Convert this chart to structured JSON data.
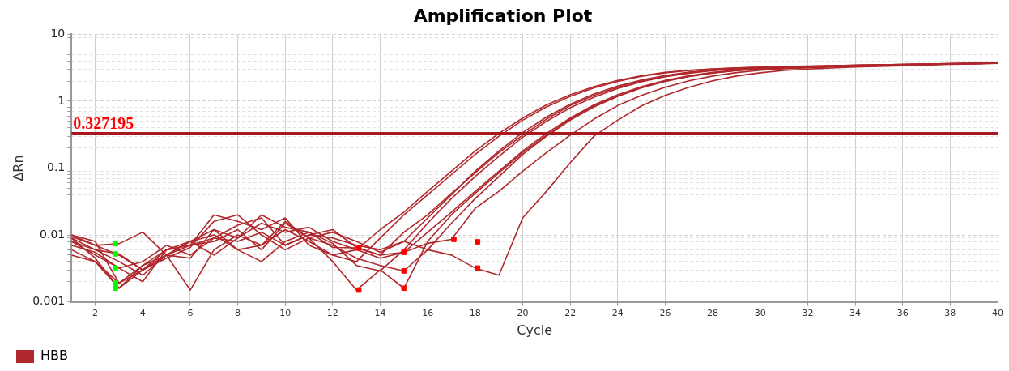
{
  "chart_data": {
    "type": "line",
    "title": "Amplification Plot",
    "xlabel": "Cycle",
    "ylabel": "ΔRn",
    "log": "y",
    "grid": true,
    "legend": "bottom left",
    "marker": "none",
    "line_style": "solid",
    "x": [
      1,
      2,
      3,
      4,
      5,
      6,
      7,
      8,
      9,
      10,
      11,
      12,
      13,
      14,
      15,
      16,
      17,
      18,
      19,
      20,
      21,
      22,
      23,
      24,
      25,
      26,
      27,
      28,
      29,
      30,
      31,
      32,
      33,
      34,
      35,
      36,
      37,
      38,
      39,
      40
    ],
    "xlim": [
      1,
      40
    ],
    "xticks": [
      2,
      4,
      6,
      8,
      10,
      12,
      14,
      16,
      18,
      20,
      22,
      24,
      26,
      28,
      30,
      32,
      34,
      36,
      38,
      40
    ],
    "ylim": [
      0.001,
      10
    ],
    "yticks": [
      0.001,
      {
        "value": 0.002,
        "label": null
      },
      {
        "value": 0.003,
        "label": null
      },
      {
        "value": 0.004,
        "label": null
      },
      {
        "value": 0.005,
        "label": null
      },
      {
        "value": 0.006,
        "label": null
      },
      {
        "value": 0.007,
        "label": null
      },
      {
        "value": 0.008,
        "label": null
      },
      {
        "value": 0.009,
        "label": null
      },
      0.01,
      {
        "value": 0.02,
        "label": null
      },
      {
        "value": 0.03,
        "label": null
      },
      {
        "value": 0.04,
        "label": null
      },
      {
        "value": 0.05,
        "label": null
      },
      {
        "value": 0.06,
        "label": null
      },
      {
        "value": 0.07,
        "label": null
      },
      {
        "value": 0.08,
        "label": null
      },
      {
        "value": 0.09,
        "label": null
      },
      0.1,
      {
        "value": 0.2,
        "label": null
      },
      {
        "value": 0.3,
        "label": null
      },
      {
        "value": 0.4,
        "label": null
      },
      {
        "value": 0.5,
        "label": null
      },
      {
        "value": 0.6,
        "label": null
      },
      {
        "value": 0.7,
        "label": null
      },
      {
        "value": 0.8,
        "label": null
      },
      {
        "value": 0.9,
        "label": null
      },
      1,
      {
        "value": 2,
        "label": null
      },
      {
        "value": 3,
        "label": null
      },
      {
        "value": 4,
        "label": null
      },
      {
        "value": 5,
        "label": null
      },
      {
        "value": 6,
        "label": null
      },
      {
        "value": 7,
        "label": null
      },
      {
        "value": 8,
        "label": null
      },
      {
        "value": 9,
        "label": null
      },
      10
    ],
    "ref_lines": [
      {
        "axis": "y",
        "value": 0.327195,
        "label": "0.327195",
        "color": "#a8181e"
      }
    ],
    "series": [
      {
        "name": "HBB",
        "color": "#b0272c",
        "values": [
          0.009,
          0.006,
          0.004,
          0.0025,
          0.005,
          0.008,
          0.012,
          0.009,
          0.015,
          0.011,
          0.013,
          0.008,
          0.006,
          0.012,
          0.022,
          0.045,
          0.09,
          0.18,
          0.33,
          0.56,
          0.88,
          1.25,
          1.65,
          2.05,
          2.4,
          2.7,
          2.9,
          3.05,
          3.15,
          3.25,
          3.3,
          3.35,
          3.4,
          3.45,
          3.5,
          3.55,
          3.6,
          3.65,
          3.7,
          3.72
        ]
      },
      {
        "color": "#b0272c",
        "values": [
          0.01,
          0.007,
          0.005,
          0.003,
          0.006,
          0.007,
          0.02,
          0.016,
          0.012,
          0.018,
          0.007,
          0.005,
          0.004,
          0.009,
          0.02,
          0.04,
          0.08,
          0.16,
          0.3,
          0.52,
          0.82,
          1.18,
          1.58,
          1.98,
          2.35,
          2.65,
          2.88,
          3.02,
          3.12,
          3.22,
          3.28,
          3.34,
          3.4,
          3.45,
          3.5,
          3.55,
          3.6,
          3.64,
          3.68,
          3.7
        ]
      },
      {
        "color": "#b0272c",
        "values": [
          0.008,
          0.005,
          0.0032,
          0.004,
          0.007,
          0.005,
          0.009,
          0.014,
          0.018,
          0.007,
          0.01,
          0.012,
          0.0065,
          0.005,
          0.011,
          0.02,
          0.042,
          0.085,
          0.17,
          0.31,
          0.54,
          0.86,
          1.22,
          1.62,
          2.02,
          2.38,
          2.68,
          2.9,
          3.05,
          3.15,
          3.25,
          3.3,
          3.36,
          3.42,
          3.48,
          3.53,
          3.58,
          3.63,
          3.68,
          3.72
        ]
      },
      {
        "color": "#b0272c",
        "values": [
          0.01,
          0.008,
          0.0019,
          0.003,
          0.005,
          0.0015,
          0.006,
          0.01,
          0.007,
          0.016,
          0.009,
          0.011,
          0.008,
          0.0055,
          0.008,
          0.018,
          0.04,
          0.09,
          0.18,
          0.34,
          0.58,
          0.9,
          1.28,
          1.68,
          2.08,
          2.42,
          2.72,
          2.92,
          3.07,
          3.17,
          3.26,
          3.32,
          3.38,
          3.44,
          3.5,
          3.55,
          3.6,
          3.65,
          3.7,
          3.73
        ]
      },
      {
        "color": "#b0272c",
        "values": [
          0.009,
          0.0045,
          0.0016,
          0.0035,
          0.006,
          0.008,
          0.005,
          0.009,
          0.02,
          0.013,
          0.011,
          0.0075,
          0.0035,
          0.0029,
          0.006,
          0.015,
          0.035,
          0.075,
          0.15,
          0.29,
          0.5,
          0.8,
          1.15,
          1.55,
          1.95,
          2.32,
          2.62,
          2.86,
          3.02,
          3.13,
          3.22,
          3.3,
          3.36,
          3.42,
          3.47,
          3.52,
          3.57,
          3.62,
          3.66,
          3.7
        ]
      },
      {
        "color": "#b0272c",
        "values": [
          0.0095,
          0.007,
          0.0074,
          0.011,
          0.005,
          0.0045,
          0.012,
          0.006,
          0.004,
          0.008,
          0.011,
          0.0065,
          0.0064,
          0.005,
          0.0055,
          0.011,
          0.022,
          0.045,
          0.09,
          0.18,
          0.33,
          0.56,
          0.88,
          1.25,
          1.65,
          2.05,
          2.4,
          2.7,
          2.9,
          3.05,
          3.15,
          3.25,
          3.32,
          3.38,
          3.44,
          3.5,
          3.55,
          3.6,
          3.66,
          3.7
        ]
      },
      {
        "color": "#b0272c",
        "values": [
          0.008,
          0.006,
          0.0052,
          0.003,
          0.0045,
          0.0065,
          0.016,
          0.02,
          0.01,
          0.006,
          0.009,
          0.004,
          0.0015,
          0.003,
          0.0016,
          0.008,
          0.02,
          0.042,
          0.085,
          0.17,
          0.31,
          0.54,
          0.85,
          1.2,
          1.6,
          2.0,
          2.36,
          2.66,
          2.88,
          3.03,
          3.14,
          3.23,
          3.3,
          3.37,
          3.43,
          3.49,
          3.54,
          3.6,
          3.65,
          3.7
        ]
      },
      {
        "color": "#b0272c",
        "values": [
          0.007,
          0.0055,
          0.0032,
          0.002,
          0.006,
          0.007,
          0.008,
          0.012,
          0.006,
          0.015,
          0.009,
          0.007,
          0.0045,
          0.0035,
          0.0029,
          0.006,
          0.015,
          0.035,
          0.075,
          0.16,
          0.3,
          0.52,
          0.82,
          1.18,
          1.58,
          1.98,
          2.34,
          2.64,
          2.87,
          3.02,
          3.13,
          3.22,
          3.3,
          3.36,
          3.42,
          3.48,
          3.54,
          3.6,
          3.65,
          3.69
        ]
      },
      {
        "color": "#b0272c",
        "values": [
          0.006,
          0.004,
          0.0019,
          0.0035,
          0.005,
          0.008,
          0.01,
          0.006,
          0.007,
          0.012,
          0.008,
          0.005,
          0.006,
          0.0045,
          0.0055,
          0.0075,
          0.0086,
          0.025,
          0.045,
          0.09,
          0.17,
          0.31,
          0.54,
          0.86,
          1.22,
          1.62,
          2.02,
          2.38,
          2.68,
          2.9,
          3.05,
          3.17,
          3.26,
          3.34,
          3.42,
          3.48,
          3.55,
          3.6,
          3.66,
          3.7
        ]
      },
      {
        "color": "#b0272c",
        "values": [
          0.005,
          0.004,
          0.0016,
          0.003,
          0.005,
          0.007,
          0.009,
          0.008,
          0.011,
          0.007,
          0.01,
          0.009,
          0.007,
          0.006,
          0.008,
          0.006,
          0.005,
          0.0032,
          0.0025,
          0.018,
          0.045,
          0.12,
          0.3,
          0.52,
          0.85,
          1.22,
          1.62,
          2.02,
          2.38,
          2.66,
          2.88,
          3.02,
          3.14,
          3.24,
          3.32,
          3.4,
          3.48,
          3.55,
          3.62,
          3.68
        ]
      },
      {
        "type": "scatter",
        "marker": "square",
        "color": "#00ff00",
        "x": [
          2.85,
          2.85,
          2.85,
          2.85,
          2.85
        ],
        "values": [
          0.0074,
          0.0052,
          0.0032,
          0.0019,
          0.0016
        ]
      },
      {
        "type": "scatter",
        "marker": "square",
        "color": "#ff0000",
        "x": [
          13.1,
          13.1,
          15,
          15,
          15,
          17.1,
          18.1,
          18.1
        ],
        "values": [
          0.0064,
          0.0015,
          0.0055,
          0.0029,
          0.0016,
          0.0086,
          0.0079,
          0.0032
        ]
      }
    ]
  }
}
